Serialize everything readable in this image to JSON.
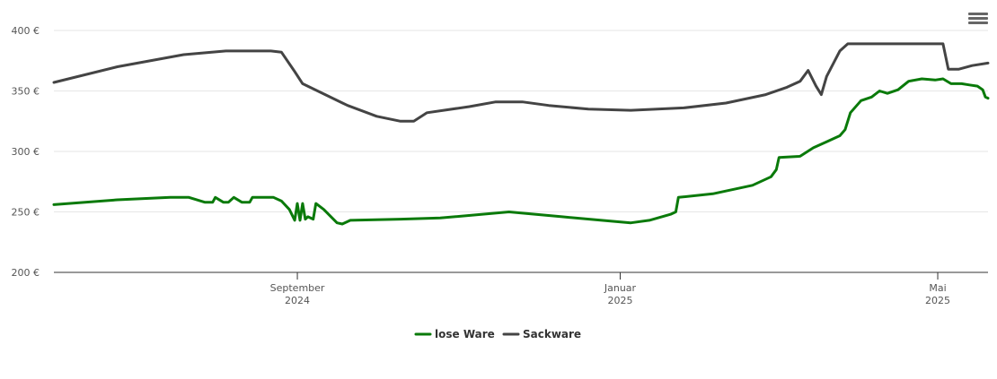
{
  "colors": {
    "lose_ware": "#0a7a0a",
    "sackware": "#444444",
    "grid": "#e6e6e6",
    "axis": "#333333"
  },
  "menu": {
    "icon": "hamburger-menu-icon"
  },
  "chart_data": {
    "type": "line",
    "title": "",
    "xlabel": "",
    "ylabel": "",
    "ylim": [
      200,
      400
    ],
    "xlim": [
      "2024-06-01",
      "2025-05-20"
    ],
    "y_ticks": [
      {
        "value": 200,
        "label": "200 €"
      },
      {
        "value": 250,
        "label": "250 €"
      },
      {
        "value": 300,
        "label": "300 €"
      },
      {
        "value": 350,
        "label": "350 €"
      },
      {
        "value": 400,
        "label": "400 €"
      }
    ],
    "x_ticks": [
      {
        "date": "2024-09-01",
        "line1": "September",
        "line2": "2024"
      },
      {
        "date": "2025-01-01",
        "line1": "Januar",
        "line2": "2025"
      },
      {
        "date": "2025-05-01",
        "line1": "Mai",
        "line2": "2025"
      }
    ],
    "grid": true,
    "legend_position": "bottom-center",
    "series": [
      {
        "name": "lose Ware",
        "color_key": "lose_ware",
        "points": [
          [
            "2024-06-01",
            256
          ],
          [
            "2024-06-25",
            260
          ],
          [
            "2024-07-15",
            262
          ],
          [
            "2024-07-22",
            262
          ],
          [
            "2024-07-28",
            258
          ],
          [
            "2024-07-31",
            258
          ],
          [
            "2024-08-01",
            262
          ],
          [
            "2024-08-04",
            258
          ],
          [
            "2024-08-06",
            258
          ],
          [
            "2024-08-08",
            262
          ],
          [
            "2024-08-11",
            258
          ],
          [
            "2024-08-14",
            258
          ],
          [
            "2024-08-15",
            262
          ],
          [
            "2024-08-23",
            262
          ],
          [
            "2024-08-26",
            259
          ],
          [
            "2024-08-29",
            252
          ],
          [
            "2024-08-31",
            243
          ],
          [
            "2024-09-01",
            257
          ],
          [
            "2024-09-02",
            243
          ],
          [
            "2024-09-03",
            257
          ],
          [
            "2024-09-04",
            244
          ],
          [
            "2024-09-05",
            246
          ],
          [
            "2024-09-07",
            244
          ],
          [
            "2024-09-08",
            257
          ],
          [
            "2024-09-11",
            252
          ],
          [
            "2024-09-16",
            241
          ],
          [
            "2024-09-18",
            240
          ],
          [
            "2024-09-21",
            243
          ],
          [
            "2024-10-10",
            244
          ],
          [
            "2024-10-25",
            245
          ],
          [
            "2024-11-20",
            250
          ],
          [
            "2024-12-10",
            246
          ],
          [
            "2024-12-25",
            243
          ],
          [
            "2025-01-05",
            241
          ],
          [
            "2025-01-12",
            243
          ],
          [
            "2025-01-20",
            248
          ],
          [
            "2025-01-22",
            250
          ],
          [
            "2025-01-23",
            262
          ],
          [
            "2025-02-05",
            265
          ],
          [
            "2025-02-20",
            272
          ],
          [
            "2025-02-27",
            279
          ],
          [
            "2025-03-01",
            285
          ],
          [
            "2025-03-02",
            295
          ],
          [
            "2025-03-10",
            296
          ],
          [
            "2025-03-15",
            303
          ],
          [
            "2025-03-20",
            308
          ],
          [
            "2025-03-25",
            313
          ],
          [
            "2025-03-27",
            318
          ],
          [
            "2025-03-29",
            332
          ],
          [
            "2025-04-02",
            342
          ],
          [
            "2025-04-06",
            345
          ],
          [
            "2025-04-09",
            350
          ],
          [
            "2025-04-12",
            348
          ],
          [
            "2025-04-16",
            351
          ],
          [
            "2025-04-20",
            358
          ],
          [
            "2025-04-25",
            360
          ],
          [
            "2025-04-30",
            359
          ],
          [
            "2025-05-03",
            360
          ],
          [
            "2025-05-06",
            356
          ],
          [
            "2025-05-10",
            356
          ],
          [
            "2025-05-13",
            355
          ],
          [
            "2025-05-16",
            354
          ],
          [
            "2025-05-18",
            351
          ],
          [
            "2025-05-19",
            345
          ],
          [
            "2025-05-20",
            344
          ]
        ]
      },
      {
        "name": "Sackware",
        "color_key": "sackware",
        "points": [
          [
            "2024-06-01",
            357
          ],
          [
            "2024-06-25",
            370
          ],
          [
            "2024-07-20",
            380
          ],
          [
            "2024-08-05",
            383
          ],
          [
            "2024-08-22",
            383
          ],
          [
            "2024-08-26",
            382
          ],
          [
            "2024-08-31",
            366
          ],
          [
            "2024-09-03",
            356
          ],
          [
            "2024-09-20",
            338
          ],
          [
            "2024-10-01",
            329
          ],
          [
            "2024-10-10",
            325
          ],
          [
            "2024-10-15",
            325
          ],
          [
            "2024-10-20",
            332
          ],
          [
            "2024-11-05",
            337
          ],
          [
            "2024-11-15",
            341
          ],
          [
            "2024-11-25",
            341
          ],
          [
            "2024-12-05",
            338
          ],
          [
            "2024-12-20",
            335
          ],
          [
            "2025-01-05",
            334
          ],
          [
            "2025-01-25",
            336
          ],
          [
            "2025-02-10",
            340
          ],
          [
            "2025-02-25",
            347
          ],
          [
            "2025-03-05",
            353
          ],
          [
            "2025-03-10",
            358
          ],
          [
            "2025-03-13",
            367
          ],
          [
            "2025-03-16",
            354
          ],
          [
            "2025-03-18",
            347
          ],
          [
            "2025-03-20",
            362
          ],
          [
            "2025-03-25",
            383
          ],
          [
            "2025-03-28",
            389
          ],
          [
            "2025-04-15",
            389
          ],
          [
            "2025-05-01",
            389
          ],
          [
            "2025-05-03",
            389
          ],
          [
            "2025-05-05",
            368
          ],
          [
            "2025-05-09",
            368
          ],
          [
            "2025-05-14",
            371
          ],
          [
            "2025-05-20",
            373
          ]
        ]
      }
    ]
  }
}
